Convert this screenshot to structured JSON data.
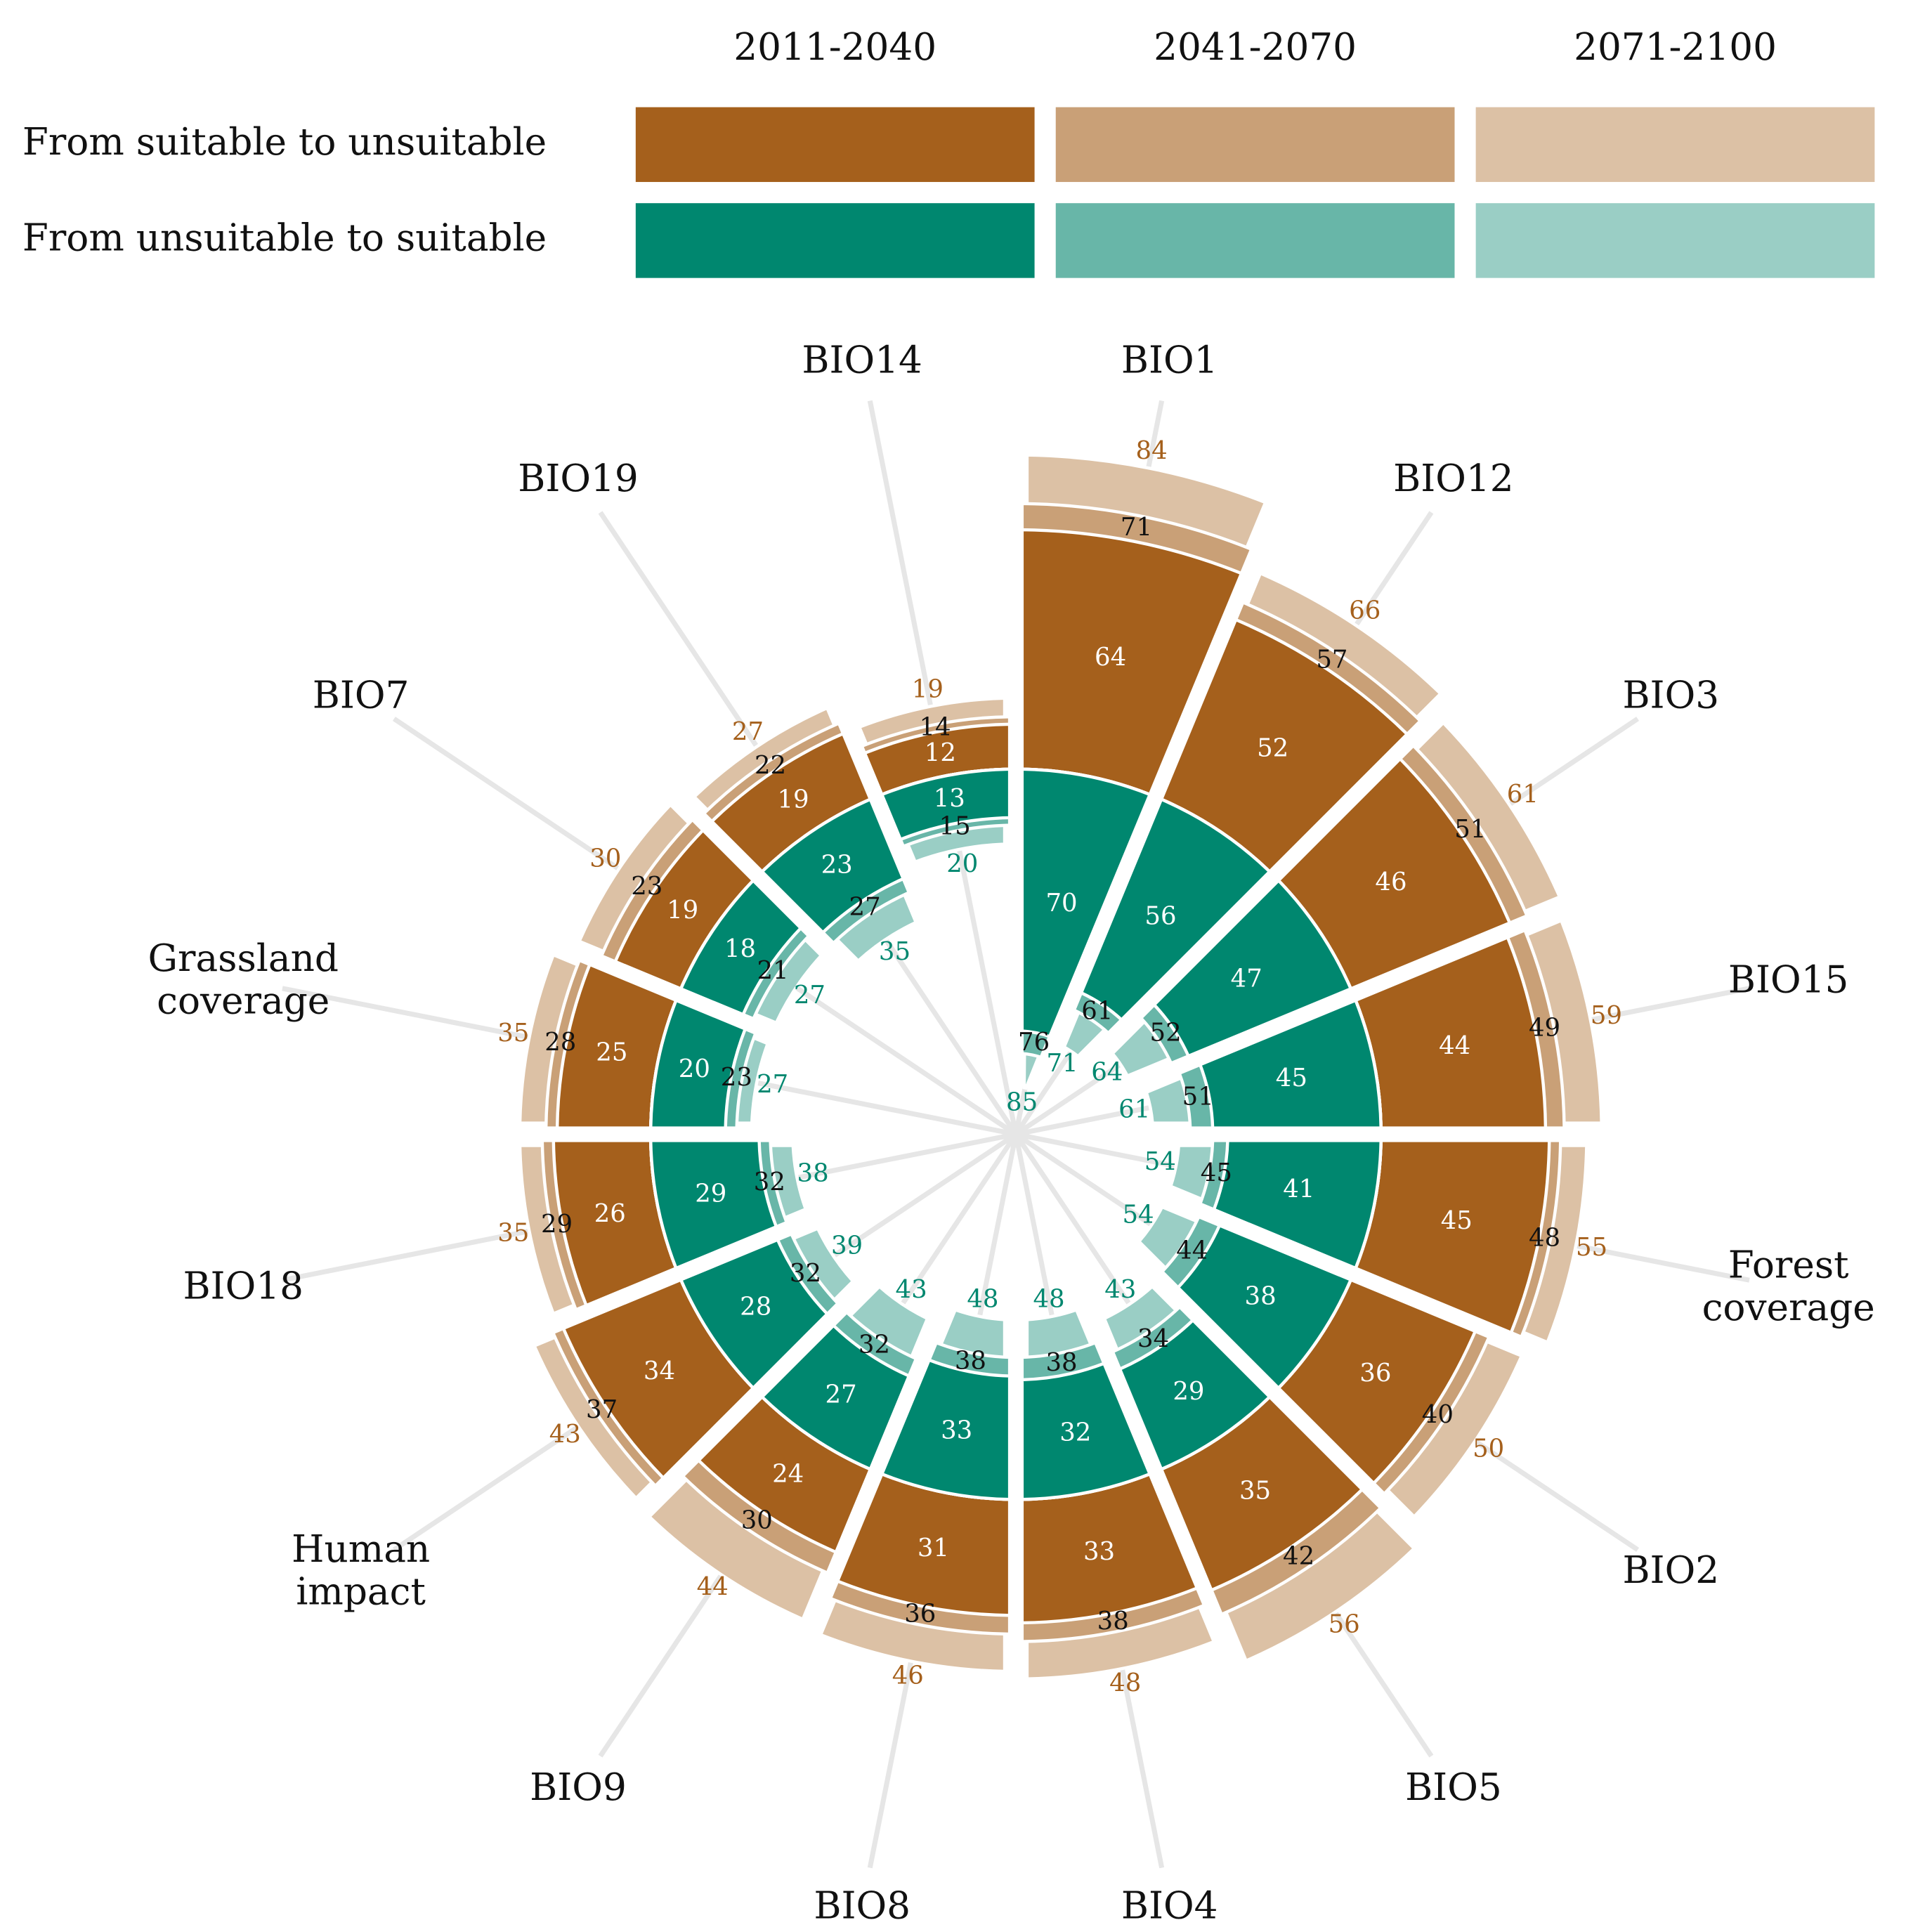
{
  "chart_data": {
    "type": "radial_bar",
    "periods": [
      "2011-2040",
      "2041-2070",
      "2071-2100"
    ],
    "categories": [
      "BIO1",
      "BIO12",
      "BIO3",
      "BIO15",
      "Forest coverage",
      "BIO2",
      "BIO5",
      "BIO4",
      "BIO8",
      "BIO9",
      "Human impact",
      "BIO18",
      "Grassland coverage",
      "BIO7",
      "BIO19",
      "BIO14"
    ],
    "groups": [
      {
        "name": "From suitable to unsuitable",
        "direction": "outward",
        "colors": [
          "#a5601c",
          "#c9a077",
          "#dcc1a5"
        ],
        "values": [
          [
            64,
            52,
            46,
            44,
            45,
            36,
            35,
            33,
            31,
            24,
            34,
            26,
            25,
            19,
            19,
            12
          ],
          [
            71,
            57,
            51,
            49,
            48,
            40,
            42,
            38,
            36,
            30,
            37,
            29,
            28,
            23,
            22,
            14
          ],
          [
            84,
            66,
            61,
            59,
            55,
            50,
            56,
            48,
            46,
            44,
            43,
            35,
            35,
            30,
            27,
            19
          ]
        ]
      },
      {
        "name": "From unsuitable to suitable",
        "direction": "inward",
        "colors": [
          "#00876f",
          "#68b6a8",
          "#9acec5"
        ],
        "values": [
          [
            70,
            56,
            47,
            45,
            41,
            38,
            29,
            32,
            33,
            27,
            28,
            29,
            20,
            18,
            23,
            13
          ],
          [
            76,
            61,
            52,
            51,
            45,
            44,
            34,
            38,
            38,
            32,
            32,
            32,
            23,
            21,
            27,
            15
          ],
          [
            85,
            71,
            64,
            61,
            54,
            54,
            43,
            48,
            48,
            43,
            39,
            38,
            27,
            27,
            35,
            20
          ]
        ]
      }
    ]
  }
}
